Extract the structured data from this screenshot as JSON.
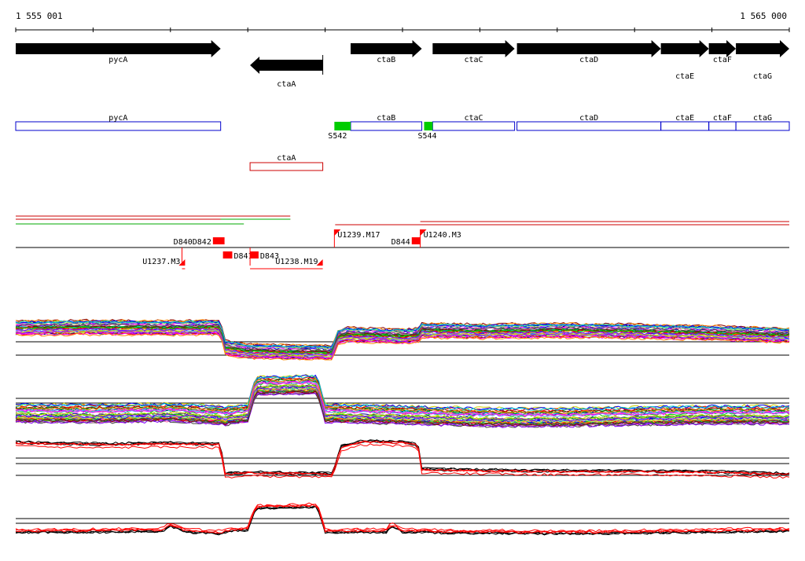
{
  "coords": {
    "start_label": "1 555 001",
    "end_label": "1 565 000",
    "start": 1555001,
    "end": 1565000
  },
  "colors": {
    "gene": "#000000",
    "cds_box": "#0000cc",
    "minus_box": "#cc0000",
    "promoter": "#00cc00",
    "segment": "#ff0000",
    "line": "#000000",
    "green_line": "#00aa00"
  },
  "genes_top": [
    {
      "name": "pycA",
      "start": 1555001,
      "end": 1557650,
      "strand": "+"
    },
    {
      "name": "ctaA",
      "start": 1558030,
      "end": 1558970,
      "strand": "-"
    },
    {
      "name": "ctaB",
      "start": 1559330,
      "end": 1560250,
      "strand": "+"
    },
    {
      "name": "ctaC",
      "start": 1560390,
      "end": 1561450,
      "strand": "+"
    },
    {
      "name": "ctaD",
      "start": 1561480,
      "end": 1563340,
      "strand": "+"
    },
    {
      "name": "ctaE",
      "start": 1563340,
      "end": 1563960,
      "strand": "+"
    },
    {
      "name": "ctaF",
      "start": 1563960,
      "end": 1564310,
      "strand": "+"
    },
    {
      "name": "ctaG",
      "start": 1564310,
      "end": 1565000,
      "strand": "+"
    }
  ],
  "boxes_plus": [
    {
      "name": "pycA",
      "start": 1555001,
      "end": 1557650
    },
    {
      "name": "ctaB",
      "start": 1559330,
      "end": 1560250
    },
    {
      "name": "ctaC",
      "start": 1560390,
      "end": 1561450
    },
    {
      "name": "ctaD",
      "start": 1561480,
      "end": 1563340
    },
    {
      "name": "ctaE",
      "start": 1563340,
      "end": 1563960
    },
    {
      "name": "ctaF",
      "start": 1563960,
      "end": 1564310
    },
    {
      "name": "ctaG",
      "start": 1564310,
      "end": 1565000
    }
  ],
  "boxes_minus": [
    {
      "name": "ctaA",
      "start": 1558030,
      "end": 1558970
    }
  ],
  "promoters": [
    {
      "name": "S542",
      "start": 1559120,
      "end": 1559330
    },
    {
      "name": "S544",
      "start": 1560280,
      "end": 1560390
    }
  ],
  "segments_labels": {
    "D839_overlap": "D840D842",
    "D841": "D841",
    "D843": "D843",
    "D844": "D844",
    "U1237": "U1237.M3",
    "U1238": "U1238.M19",
    "U1239": "U1239.M17",
    "U1240": "U1240.M3"
  },
  "segments": [
    {
      "label_key": "D839_overlap",
      "start": 1557550,
      "end": 1557700,
      "row": "upper"
    },
    {
      "label_key": "D841",
      "start": 1557680,
      "end": 1557800,
      "row": "lower"
    },
    {
      "label_key": "D843",
      "start": 1558030,
      "end": 1558140,
      "row": "lower"
    },
    {
      "label_key": "D844",
      "start": 1560120,
      "end": 1560230,
      "row": "upper"
    }
  ],
  "arrow_segments": [
    {
      "label_key": "U1237",
      "start": 1557150,
      "end": 1557190,
      "row": "lower"
    },
    {
      "label_key": "U1238",
      "start": 1558030,
      "end": 1558970,
      "row": "lower"
    },
    {
      "label_key": "U1239",
      "start": 1559120,
      "end": 1559200,
      "row": "upper"
    },
    {
      "label_key": "U1240",
      "start": 1560230,
      "end": 1560330,
      "row": "upper"
    }
  ],
  "coverage": {
    "plus": [
      {
        "start": 1555001,
        "end": 1558550,
        "color": "#cc0000",
        "offset": 0
      },
      {
        "start": 1555001,
        "end": 1558550,
        "color": "#cc0000",
        "offset": 4
      },
      {
        "start": 1557650,
        "end": 1558550,
        "color": "#00aa00",
        "offset": 4
      },
      {
        "start": 1555001,
        "end": 1557950,
        "color": "#00aa00",
        "offset": 10
      }
    ],
    "minus": [
      {
        "start": 1559130,
        "end": 1565000,
        "color": "#cc0000",
        "offset": 0
      },
      {
        "start": 1560230,
        "end": 1565000,
        "color": "#cc0000",
        "offset": -4
      }
    ]
  },
  "tracks": {
    "t1": {
      "ylim": [
        0,
        1
      ],
      "profile_x": [
        1555001,
        1556000,
        1557000,
        1557600,
        1557650,
        1557700,
        1558000,
        1559000,
        1559100,
        1559150,
        1559300,
        1560000,
        1560200,
        1560250,
        1561000,
        1562000,
        1563000,
        1564000,
        1565000
      ],
      "profile_y": [
        0.65,
        0.66,
        0.65,
        0.66,
        0.66,
        0.25,
        0.18,
        0.15,
        0.15,
        0.45,
        0.52,
        0.48,
        0.5,
        0.6,
        0.58,
        0.6,
        0.58,
        0.55,
        0.5
      ],
      "n_lines": 40
    },
    "t2": {
      "ylim": [
        0,
        1
      ],
      "profile_x": [
        1555001,
        1556000,
        1557000,
        1557600,
        1557650,
        1557700,
        1558000,
        1558100,
        1558900,
        1559000,
        1560000,
        1561000,
        1562000,
        1563000,
        1564000,
        1565000
      ],
      "profile_y": [
        0.25,
        0.24,
        0.26,
        0.22,
        0.22,
        0.2,
        0.25,
        0.7,
        0.72,
        0.25,
        0.22,
        0.18,
        0.18,
        0.2,
        0.22,
        0.22
      ],
      "n_lines": 40
    },
    "t3": {
      "ylim": [
        0,
        1
      ],
      "profile_x": [
        1555001,
        1556000,
        1557000,
        1557600,
        1557650,
        1557700,
        1558000,
        1559000,
        1559100,
        1559200,
        1559500,
        1560000,
        1560200,
        1560250,
        1561000,
        1562000,
        1563000,
        1564000,
        1565000
      ],
      "profile_y": [
        0.82,
        0.78,
        0.8,
        0.78,
        0.78,
        0.12,
        0.15,
        0.12,
        0.12,
        0.72,
        0.85,
        0.82,
        0.78,
        0.22,
        0.2,
        0.18,
        0.18,
        0.16,
        0.12
      ],
      "n_lines": 6
    },
    "t4": {
      "ylim": [
        0,
        1
      ],
      "profile_x": [
        1555001,
        1556000,
        1556900,
        1557000,
        1557200,
        1557600,
        1557650,
        1557700,
        1558000,
        1558100,
        1558900,
        1559000,
        1559800,
        1559850,
        1560000,
        1561000,
        1562000,
        1563000,
        1564000,
        1565000
      ],
      "profile_y": [
        0.3,
        0.3,
        0.32,
        0.42,
        0.3,
        0.28,
        0.26,
        0.3,
        0.34,
        0.75,
        0.78,
        0.3,
        0.3,
        0.42,
        0.3,
        0.28,
        0.27,
        0.28,
        0.3,
        0.32
      ],
      "n_lines": 6
    }
  }
}
